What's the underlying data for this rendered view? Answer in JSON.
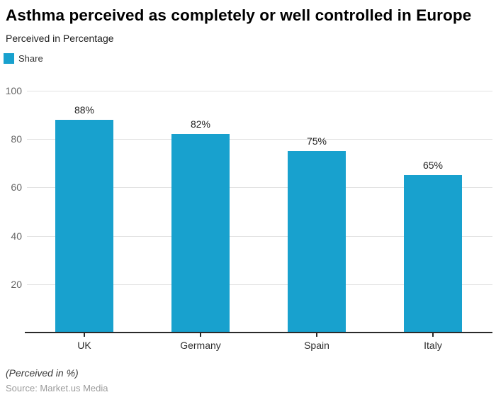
{
  "page": {
    "title": "Asthma perceived as completely or well controlled in Europe",
    "subtitle": "Perceived in Percentage",
    "footnote": "(Perceived in %)",
    "source": "Source: Market.us Media"
  },
  "legend": {
    "label": "Share",
    "color": "#18A1CE"
  },
  "chart_data": {
    "type": "bar",
    "title": "Asthma perceived as completely or well controlled in Europe",
    "subtitle": "Perceived in Percentage",
    "categories": [
      "UK",
      "Germany",
      "Spain",
      "Italy"
    ],
    "series": [
      {
        "name": "Share",
        "values": [
          88,
          82,
          75,
          65
        ]
      }
    ],
    "value_labels": [
      "88%",
      "82%",
      "75%",
      "65%"
    ],
    "xlabel": "",
    "ylabel": "",
    "ylim": [
      0,
      100
    ],
    "yticks": [
      20,
      40,
      60,
      80,
      100
    ],
    "grid": true,
    "gridline_color": "#e2e2e2",
    "bar_color": "#18A1CE",
    "axis_color": "#2a2a2a",
    "legend_position": "top-left",
    "footnote": "(Perceived in %)",
    "source": "Source: Market.us Media"
  }
}
